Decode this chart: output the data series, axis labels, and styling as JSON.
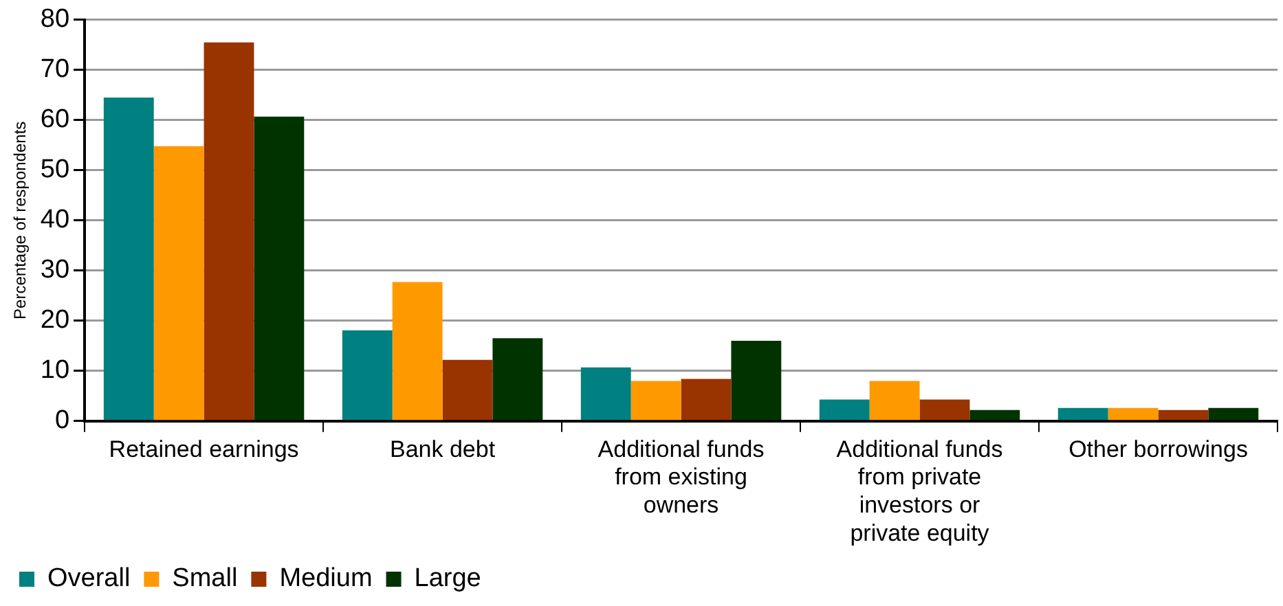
{
  "chart_data": {
    "type": "bar",
    "ylabel": "Percentage of respondents",
    "categories": [
      "Retained earnings",
      "Bank debt",
      "Additional funds from existing owners",
      "Additional funds from private investors or private equity",
      "Other borrowings"
    ],
    "series": [
      {
        "name": "Overall",
        "color": "#008080",
        "values": [
          64.5,
          18.1,
          10.7,
          4.3,
          2.6
        ]
      },
      {
        "name": "Small",
        "color": "#ff9900",
        "values": [
          54.8,
          27.7,
          8.0,
          8.0,
          2.6
        ]
      },
      {
        "name": "Medium",
        "color": "#993300",
        "values": [
          75.5,
          12.2,
          8.4,
          4.3,
          2.2
        ]
      },
      {
        "name": "Large",
        "color": "#003300",
        "values": [
          60.7,
          16.5,
          16.0,
          2.2,
          2.6
        ]
      }
    ],
    "ylim": [
      0,
      80
    ],
    "yticks": [
      0,
      10,
      20,
      30,
      40,
      50,
      60,
      70,
      80
    ],
    "grid": "y",
    "legend": "bottom left"
  }
}
